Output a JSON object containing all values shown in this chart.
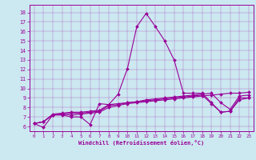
{
  "xlabel": "Windchill (Refroidissement éolien,°C)",
  "bg_color": "#cce8f0",
  "line_color": "#990099",
  "xlim": [
    -0.5,
    23.5
  ],
  "ylim": [
    5.5,
    18.8
  ],
  "xticks": [
    0,
    1,
    2,
    3,
    4,
    5,
    6,
    7,
    8,
    9,
    10,
    11,
    12,
    13,
    14,
    15,
    16,
    17,
    18,
    19,
    20,
    21,
    22,
    23
  ],
  "yticks": [
    6,
    7,
    8,
    9,
    10,
    11,
    12,
    13,
    14,
    15,
    16,
    17,
    18
  ],
  "series": [
    [
      6.3,
      5.9,
      7.2,
      7.2,
      7.0,
      7.0,
      6.2,
      8.4,
      8.3,
      9.4,
      12.1,
      16.5,
      17.9,
      16.5,
      15.0,
      13.0,
      9.5,
      9.5,
      9.5,
      8.5,
      7.5,
      7.6,
      9.0,
      9.0
    ],
    [
      6.3,
      6.5,
      7.2,
      7.3,
      7.2,
      7.3,
      7.4,
      7.5,
      8.0,
      8.2,
      8.4,
      8.5,
      8.6,
      8.7,
      8.8,
      8.9,
      9.0,
      9.1,
      9.2,
      9.3,
      9.4,
      9.5,
      9.5,
      9.6
    ],
    [
      6.3,
      6.5,
      7.2,
      7.3,
      7.4,
      7.4,
      7.5,
      7.6,
      8.2,
      8.3,
      8.5,
      8.6,
      8.7,
      8.8,
      8.9,
      9.0,
      9.1,
      9.2,
      9.3,
      8.4,
      7.5,
      7.6,
      8.8,
      9.0
    ],
    [
      6.3,
      6.5,
      7.3,
      7.4,
      7.5,
      7.5,
      7.6,
      7.7,
      8.3,
      8.4,
      8.5,
      8.6,
      8.8,
      8.9,
      9.0,
      9.1,
      9.2,
      9.3,
      9.4,
      9.5,
      8.5,
      7.8,
      9.2,
      9.3
    ]
  ]
}
